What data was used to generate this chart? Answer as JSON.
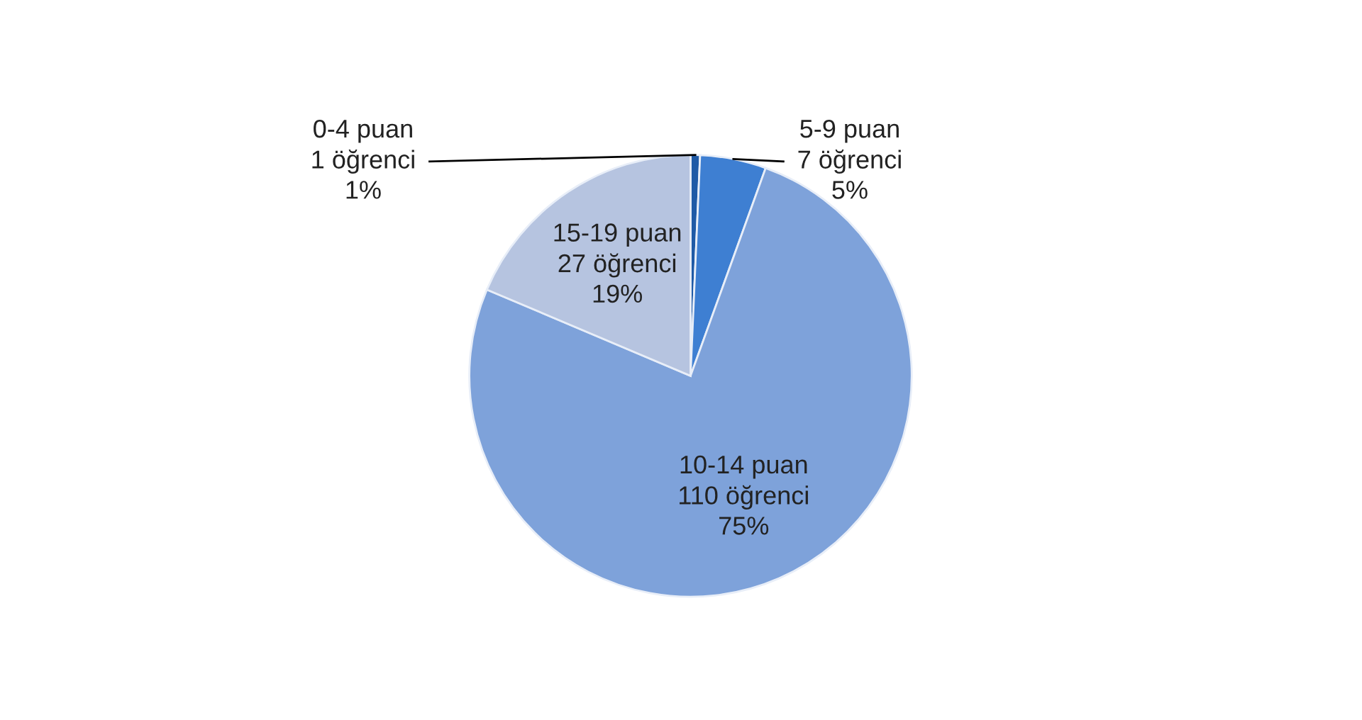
{
  "chart_data": {
    "type": "pie",
    "categories": [
      "0-4 puan",
      "5-9 puan",
      "10-14 puan",
      "15-19 puan"
    ],
    "values": [
      1,
      7,
      110,
      27
    ],
    "colors": [
      "#1f5aa6",
      "#3e7fd2",
      "#7ea2da",
      "#b6c4e0"
    ],
    "value_labels": [
      "1 öğrenci\n1%",
      "7 öğrenci\n5%",
      "110 öğrenci\n75%",
      "27 öğrenci\n19%"
    ]
  }
}
